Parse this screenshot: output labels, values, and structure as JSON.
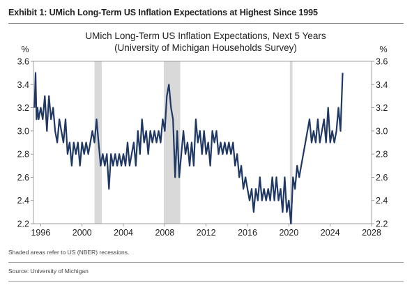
{
  "exhibit": {
    "title": "Exhibit 1: UMich Long-Term US Inflation Expectations at Highest Since 1995",
    "note": "Shaded areas refer to US (NBER) recessions.",
    "source": "Source: University of Michigan"
  },
  "chart_data": {
    "type": "line",
    "title": "UMich Long-Term US Inflation Expectations, Next 5 Years",
    "subtitle": "(University of Michigan Households Survey)",
    "ylabel_left": "%",
    "ylabel_right": "%",
    "xlim": [
      1995.3,
      2028
    ],
    "ylim": [
      2.2,
      3.6
    ],
    "x_ticks": [
      1996,
      2000,
      2004,
      2008,
      2012,
      2016,
      2020,
      2024,
      2028
    ],
    "x_tick_labels": [
      "1996",
      "2000",
      "2004",
      "2008",
      "2012",
      "2016",
      "2020",
      "2024",
      "2028"
    ],
    "y_ticks": [
      2.2,
      2.4,
      2.6,
      2.8,
      3.0,
      3.2,
      3.4,
      3.6
    ],
    "y_tick_labels": [
      "2.2",
      "2.4",
      "2.6",
      "2.8",
      "3.0",
      "3.2",
      "3.4",
      "3.6"
    ],
    "grid": false,
    "line_color": "#1f3864",
    "recession_color": "#d9d9d9",
    "recessions": [
      [
        2001.2,
        2001.9
      ],
      [
        2007.9,
        2009.5
      ],
      [
        2020.1,
        2020.35
      ]
    ],
    "series": [
      {
        "points": [
          [
            1995.4,
            3.2
          ],
          [
            1995.5,
            3.5
          ],
          [
            1995.6,
            3.1
          ],
          [
            1995.7,
            3.2
          ],
          [
            1995.8,
            3.1
          ],
          [
            1996.0,
            3.2
          ],
          [
            1996.2,
            3.1
          ],
          [
            1996.4,
            3.3
          ],
          [
            1996.6,
            3.0
          ],
          [
            1996.8,
            3.3
          ],
          [
            1997.0,
            3.1
          ],
          [
            1997.2,
            3.2
          ],
          [
            1997.4,
            3.0
          ],
          [
            1997.6,
            2.9
          ],
          [
            1997.8,
            3.1
          ],
          [
            1998.0,
            3.0
          ],
          [
            1998.2,
            2.9
          ],
          [
            1998.4,
            3.1
          ],
          [
            1998.6,
            2.8
          ],
          [
            1998.8,
            2.9
          ],
          [
            1999.0,
            2.7
          ],
          [
            1999.2,
            2.9
          ],
          [
            1999.4,
            2.8
          ],
          [
            1999.6,
            2.9
          ],
          [
            1999.8,
            2.7
          ],
          [
            2000.0,
            2.9
          ],
          [
            2000.2,
            2.8
          ],
          [
            2000.4,
            2.9
          ],
          [
            2000.6,
            2.8
          ],
          [
            2000.8,
            2.9
          ],
          [
            2001.0,
            3.0
          ],
          [
            2001.2,
            2.9
          ],
          [
            2001.4,
            3.1
          ],
          [
            2001.6,
            2.9
          ],
          [
            2001.8,
            2.7
          ],
          [
            2002.0,
            2.8
          ],
          [
            2002.2,
            2.7
          ],
          [
            2002.4,
            2.8
          ],
          [
            2002.6,
            2.5
          ],
          [
            2002.8,
            2.8
          ],
          [
            2003.0,
            2.7
          ],
          [
            2003.2,
            2.8
          ],
          [
            2003.4,
            2.7
          ],
          [
            2003.6,
            2.8
          ],
          [
            2003.8,
            2.7
          ],
          [
            2004.0,
            2.8
          ],
          [
            2004.2,
            2.7
          ],
          [
            2004.4,
            2.9
          ],
          [
            2004.6,
            2.7
          ],
          [
            2004.8,
            2.8
          ],
          [
            2005.0,
            2.9
          ],
          [
            2005.2,
            2.7
          ],
          [
            2005.4,
            3.0
          ],
          [
            2005.6,
            2.8
          ],
          [
            2005.8,
            3.1
          ],
          [
            2006.0,
            2.9
          ],
          [
            2006.2,
            3.0
          ],
          [
            2006.4,
            2.8
          ],
          [
            2006.6,
            3.0
          ],
          [
            2006.8,
            2.9
          ],
          [
            2007.0,
            3.0
          ],
          [
            2007.2,
            2.9
          ],
          [
            2007.4,
            3.0
          ],
          [
            2007.6,
            2.9
          ],
          [
            2007.8,
            3.1
          ],
          [
            2008.0,
            3.0
          ],
          [
            2008.2,
            3.3
          ],
          [
            2008.4,
            3.4
          ],
          [
            2008.6,
            3.2
          ],
          [
            2008.8,
            3.1
          ],
          [
            2009.0,
            2.6
          ],
          [
            2009.2,
            3.0
          ],
          [
            2009.4,
            2.6
          ],
          [
            2009.6,
            2.8
          ],
          [
            2009.8,
            3.0
          ],
          [
            2010.0,
            2.8
          ],
          [
            2010.2,
            2.9
          ],
          [
            2010.4,
            2.7
          ],
          [
            2010.6,
            2.9
          ],
          [
            2010.8,
            2.7
          ],
          [
            2011.0,
            3.1
          ],
          [
            2011.2,
            2.9
          ],
          [
            2011.4,
            3.0
          ],
          [
            2011.6,
            2.8
          ],
          [
            2011.8,
            3.0
          ],
          [
            2012.0,
            2.8
          ],
          [
            2012.2,
            2.9
          ],
          [
            2012.4,
            2.7
          ],
          [
            2012.6,
            3.0
          ],
          [
            2012.8,
            2.9
          ],
          [
            2013.0,
            3.0
          ],
          [
            2013.2,
            2.8
          ],
          [
            2013.4,
            2.9
          ],
          [
            2013.6,
            2.8
          ],
          [
            2013.8,
            2.9
          ],
          [
            2014.0,
            2.8
          ],
          [
            2014.2,
            2.9
          ],
          [
            2014.4,
            2.8
          ],
          [
            2014.6,
            2.9
          ],
          [
            2014.8,
            2.7
          ],
          [
            2015.0,
            2.8
          ],
          [
            2015.2,
            2.6
          ],
          [
            2015.4,
            2.7
          ],
          [
            2015.6,
            2.5
          ],
          [
            2015.8,
            2.6
          ],
          [
            2016.0,
            2.5
          ],
          [
            2016.2,
            2.4
          ],
          [
            2016.4,
            2.5
          ],
          [
            2016.6,
            2.3
          ],
          [
            2016.8,
            2.5
          ],
          [
            2017.0,
            2.4
          ],
          [
            2017.2,
            2.6
          ],
          [
            2017.4,
            2.4
          ],
          [
            2017.6,
            2.5
          ],
          [
            2017.8,
            2.4
          ],
          [
            2018.0,
            2.5
          ],
          [
            2018.2,
            2.4
          ],
          [
            2018.4,
            2.6
          ],
          [
            2018.6,
            2.4
          ],
          [
            2018.8,
            2.6
          ],
          [
            2019.0,
            2.4
          ],
          [
            2019.2,
            2.5
          ],
          [
            2019.4,
            2.3
          ],
          [
            2019.6,
            2.6
          ],
          [
            2019.8,
            2.3
          ],
          [
            2020.0,
            2.4
          ],
          [
            2020.2,
            2.2
          ],
          [
            2020.4,
            2.6
          ],
          [
            2020.6,
            2.5
          ],
          [
            2020.8,
            2.7
          ],
          [
            2021.0,
            2.6
          ],
          [
            2021.2,
            2.7
          ],
          [
            2021.4,
            2.8
          ],
          [
            2021.6,
            2.9
          ],
          [
            2021.8,
            3.0
          ],
          [
            2022.0,
            3.1
          ],
          [
            2022.2,
            2.9
          ],
          [
            2022.4,
            3.0
          ],
          [
            2022.6,
            2.9
          ],
          [
            2022.8,
            3.1
          ],
          [
            2023.0,
            2.9
          ],
          [
            2023.2,
            3.0
          ],
          [
            2023.4,
            3.1
          ],
          [
            2023.6,
            2.9
          ],
          [
            2023.8,
            3.2
          ],
          [
            2024.0,
            2.9
          ],
          [
            2024.2,
            3.0
          ],
          [
            2024.4,
            2.9
          ],
          [
            2024.6,
            3.0
          ],
          [
            2024.8,
            3.2
          ],
          [
            2025.0,
            3.0
          ],
          [
            2025.2,
            3.5
          ]
        ]
      }
    ]
  }
}
